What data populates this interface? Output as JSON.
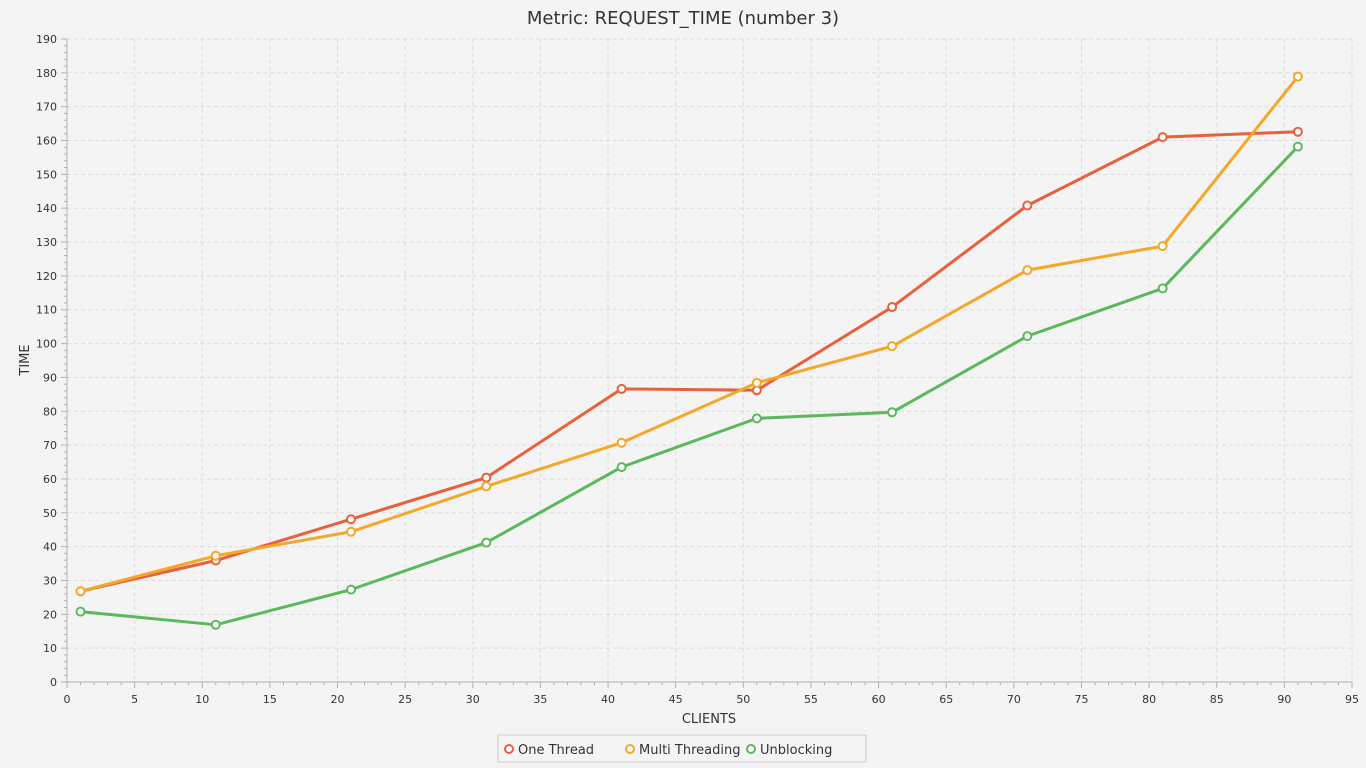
{
  "chart_data": {
    "type": "line",
    "title": "Metric: REQUEST_TIME (number 3)",
    "xlabel": "CLIENTS",
    "ylabel": "TIME",
    "xlim": [
      0,
      95
    ],
    "ylim": [
      0,
      190
    ],
    "x_major_step": 5,
    "y_major_step": 10,
    "grid": true,
    "legend_position": "bottom-center",
    "x": [
      1,
      11,
      21,
      31,
      41,
      51,
      61,
      71,
      81,
      91
    ],
    "series": [
      {
        "name": "One Thread",
        "color": "#e8603c",
        "values": [
          26.8,
          35.9,
          48.1,
          60.4,
          86.6,
          86.2,
          110.8,
          140.8,
          161.0,
          162.6
        ]
      },
      {
        "name": "Multi Threading",
        "color": "#f3a72b",
        "values": [
          26.8,
          37.3,
          44.4,
          57.8,
          70.7,
          88.4,
          99.2,
          121.7,
          128.8,
          178.9
        ]
      },
      {
        "name": "Unblocking",
        "color": "#5cb85c",
        "values": [
          20.8,
          16.9,
          27.3,
          41.2,
          63.5,
          77.9,
          79.7,
          102.2,
          116.3,
          158.2
        ]
      }
    ]
  }
}
